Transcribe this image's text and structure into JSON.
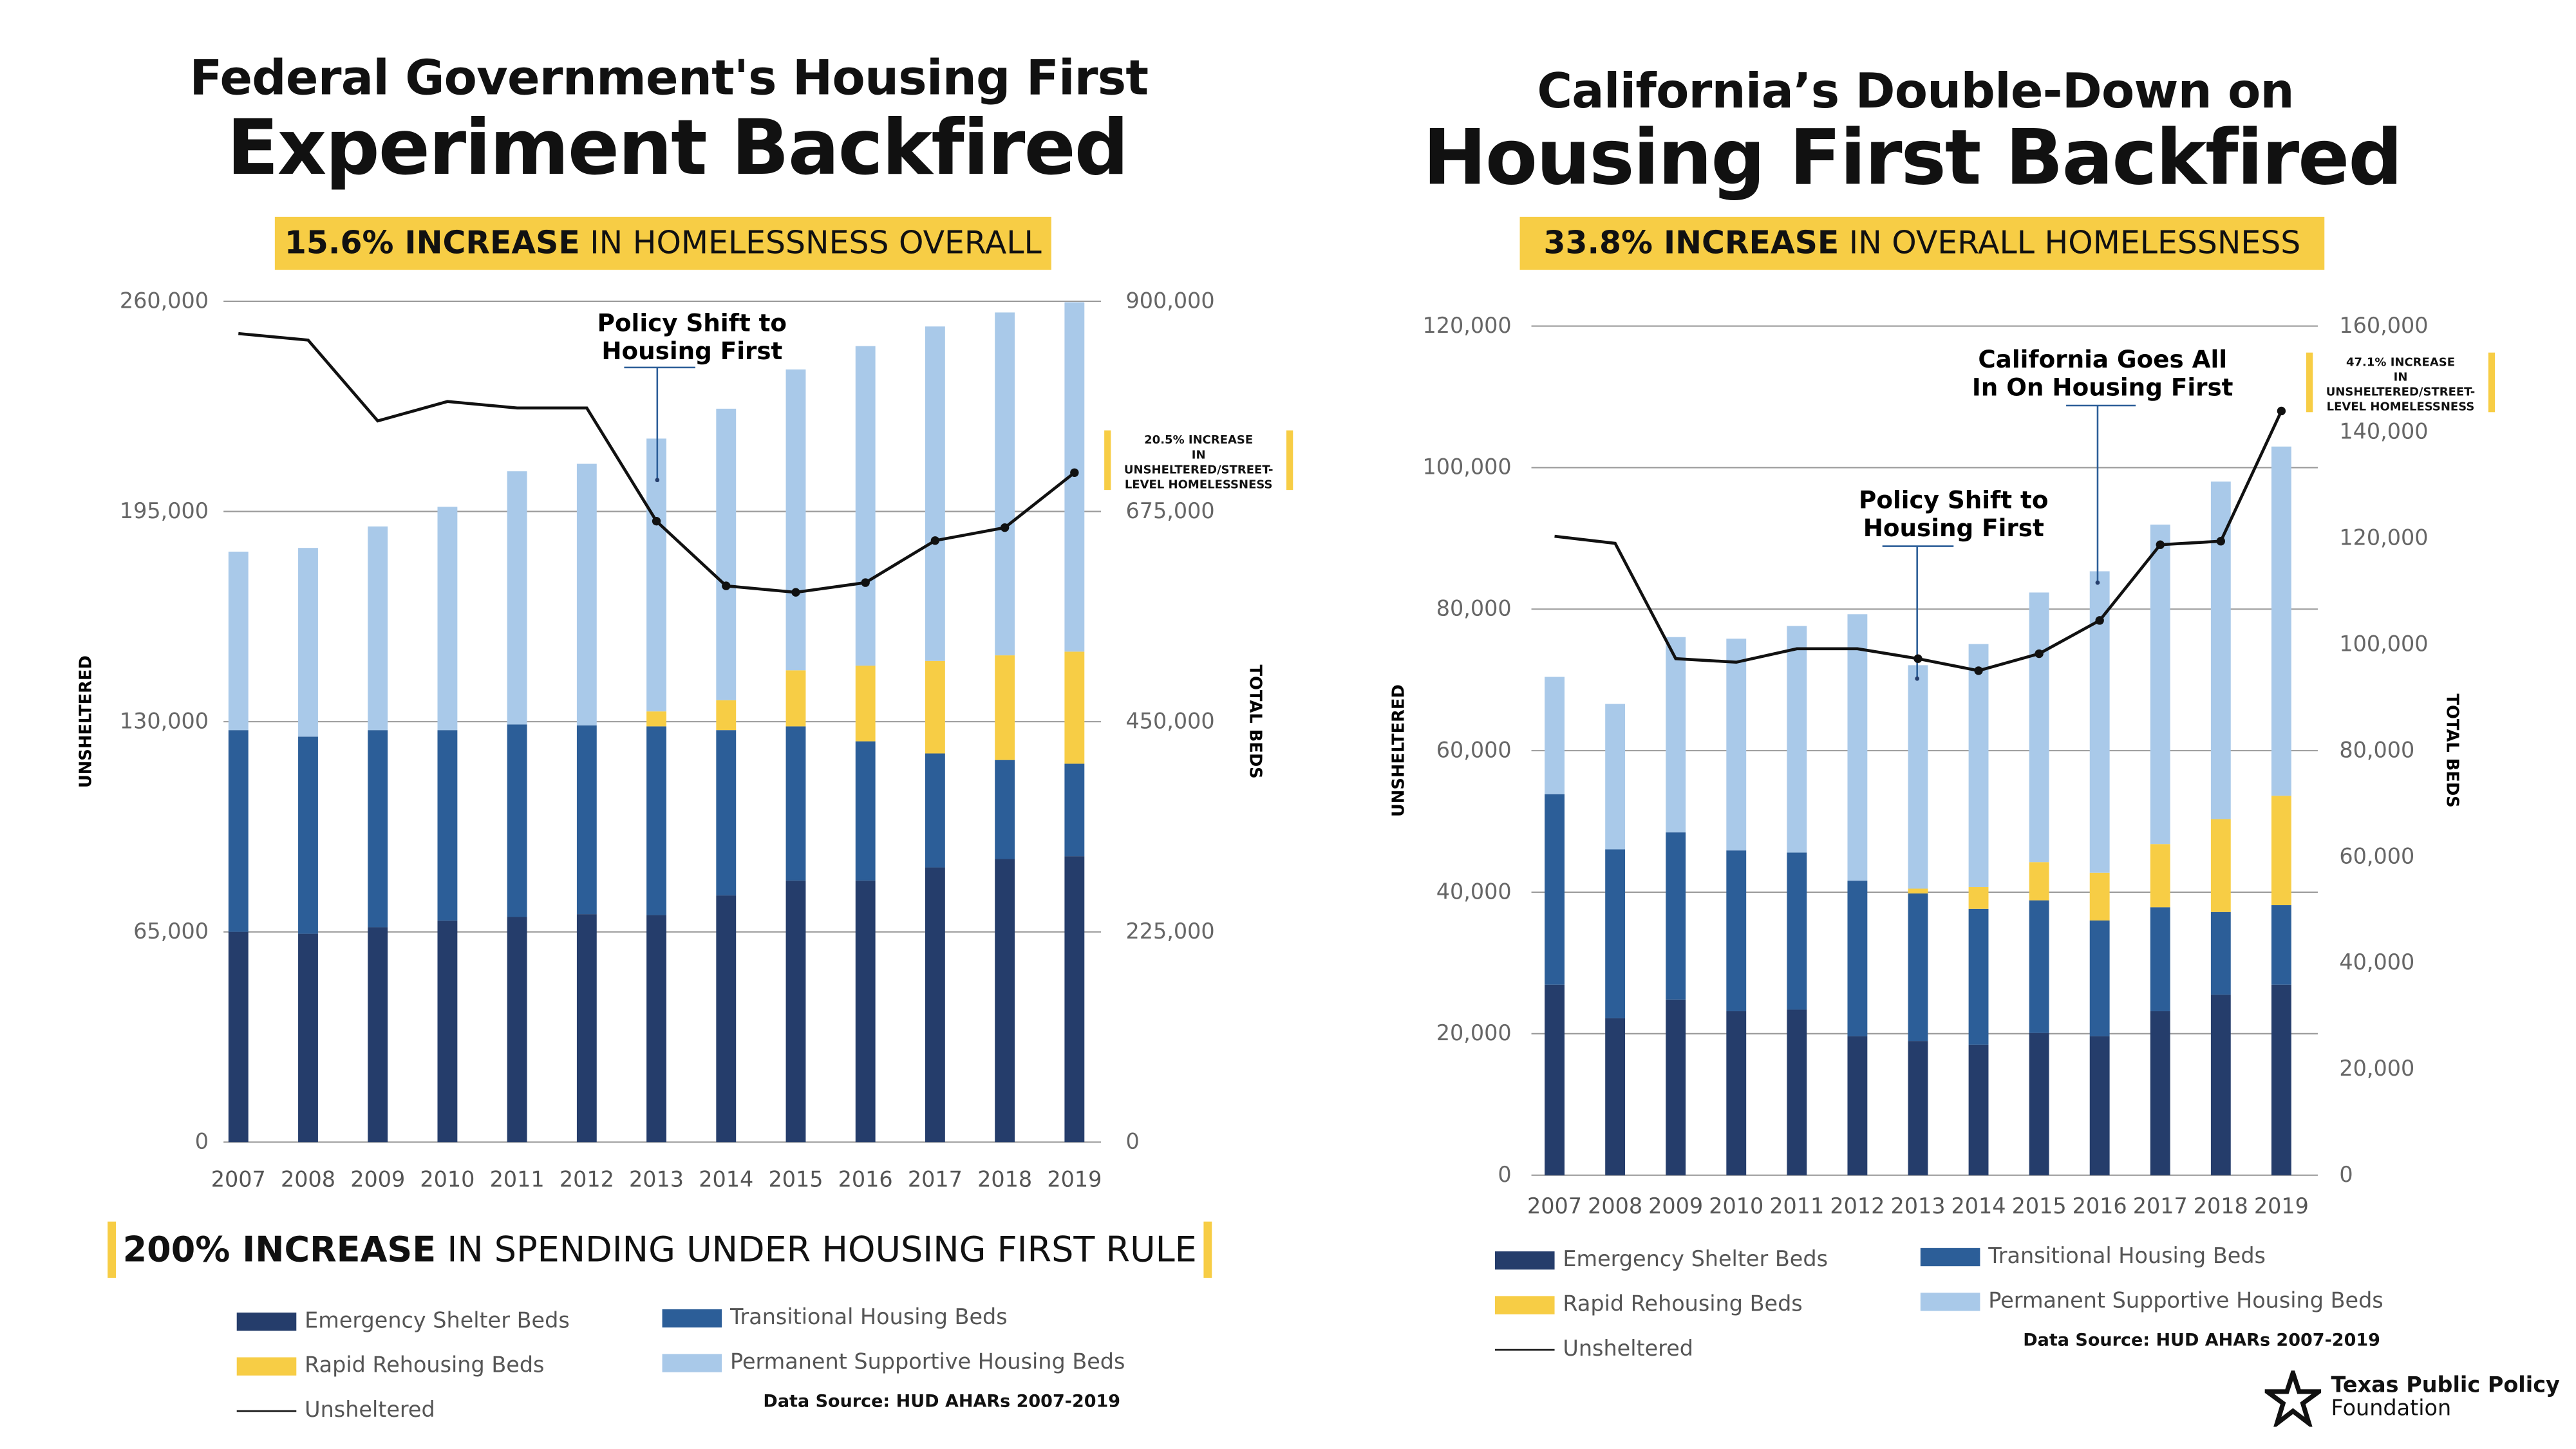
{
  "colors": {
    "emergency": "#253d6b",
    "transitional": "#2c5e98",
    "rapid": "#f7cd45",
    "permanent": "#a9c9e9",
    "unsheltered": "#111111",
    "grid": "#9a9a9a",
    "highlight": "#f7cd45"
  },
  "left": {
    "title_line1": "Federal Government's Housing First",
    "title_line2": "Experiment Backfired",
    "banner_bold": "15.6% INCREASE",
    "banner_rest": " IN HOMELESSNESS OVERALL",
    "callout_bold": "20.5% INCREASE",
    "callout_rest": "IN UNSHELTERED/STREET-LEVEL HOMELESSNESS",
    "spending_bold": "200% INCREASE",
    "spending_rest": " IN SPENDING UNDER HOUSING FIRST RULE",
    "data_source": "Data Source: HUD AHARs 2007-2019"
  },
  "right": {
    "title_line1": "California’s Double-Down on",
    "title_line2": "Housing First Backfired",
    "banner_bold": "33.8% INCREASE",
    "banner_rest": " IN OVERALL HOMELESSNESS",
    "callout_bold": "47.1% INCREASE",
    "callout_rest": "IN UNSHELTERED/STREET-LEVEL HOMELESSNESS",
    "data_source": "Data Source: HUD AHARs 2007-2019"
  },
  "legend": {
    "emergency": "Emergency Shelter Beds",
    "transitional": "Transitional Housing Beds",
    "rapid": "Rapid Rehousing Beds",
    "permanent": "Permanent Supportive Housing Beds",
    "unsheltered": "Unsheltered"
  },
  "logo": {
    "line1": "Texas Public Policy",
    "line2": "Foundation",
    "icon": "star-icon"
  },
  "chart_data": [
    {
      "type": "bar",
      "stacked": true,
      "title": "Federal Government's Housing First Experiment Backfired",
      "categories": [
        "2007",
        "2008",
        "2009",
        "2010",
        "2011",
        "2012",
        "2013",
        "2014",
        "2015",
        "2016",
        "2017",
        "2018",
        "2019"
      ],
      "ylabel": "UNSHELTERED",
      "ylim": [
        0,
        260000
      ],
      "yticks": [
        "0",
        "65,000",
        "130,000",
        "195,000",
        "260,000"
      ],
      "y2label": "TOTAL BEDS",
      "y2lim": [
        0,
        900000
      ],
      "y2ticks": [
        "0",
        "225,000",
        "450,000",
        "675,000",
        "900,000"
      ],
      "grid": true,
      "series": [
        {
          "name": "Emergency Shelter Beds",
          "axis": "right",
          "values": [
            225000,
            223000,
            230000,
            237000,
            241000,
            244000,
            243000,
            264000,
            280000,
            280000,
            294000,
            303000,
            306000
          ]
        },
        {
          "name": "Transitional Housing Beds",
          "axis": "right",
          "values": [
            216000,
            211000,
            211000,
            204000,
            206000,
            202000,
            202000,
            177000,
            165000,
            149000,
            122000,
            106000,
            99000
          ]
        },
        {
          "name": "Rapid Rehousing Beds",
          "axis": "right",
          "values": [
            0,
            0,
            0,
            0,
            0,
            0,
            16000,
            32000,
            60000,
            81000,
            99000,
            112000,
            120000
          ]
        },
        {
          "name": "Permanent Supportive Housing Beds",
          "axis": "right",
          "values": [
            191000,
            202000,
            218000,
            239000,
            271000,
            280000,
            292000,
            312000,
            322000,
            342000,
            358000,
            367000,
            374000
          ]
        },
        {
          "name": "Unsheltered",
          "type": "line",
          "axis": "left",
          "values": [
            250000,
            248000,
            223000,
            229000,
            227000,
            227000,
            192000,
            172000,
            170000,
            173000,
            186000,
            190000,
            207000
          ]
        }
      ],
      "annotations": [
        {
          "label_line1": "Policy Shift to",
          "label_line2": "Housing First",
          "year": "2013"
        }
      ]
    },
    {
      "type": "bar",
      "stacked": true,
      "title": "California’s Double-Down on Housing First Backfired",
      "categories": [
        "2007",
        "2008",
        "2009",
        "2010",
        "2011",
        "2012",
        "2013",
        "2014",
        "2015",
        "2016",
        "2017",
        "2018",
        "2019"
      ],
      "ylabel": "UNSHELTERED",
      "ylim": [
        0,
        120000
      ],
      "yticks": [
        "0",
        "20,000",
        "40,000",
        "60,000",
        "80,000",
        "100,000",
        "120,000"
      ],
      "y2label": "TOTAL BEDS",
      "y2lim": [
        0,
        160000
      ],
      "y2ticks": [
        "0",
        "20,000",
        "40,000",
        "60,000",
        "80,000",
        "100,000",
        "120,000",
        "140,000",
        "160,000"
      ],
      "grid": true,
      "series": [
        {
          "name": "Emergency Shelter Beds",
          "axis": "right",
          "values": [
            35900,
            29600,
            33100,
            30900,
            31200,
            26200,
            25300,
            24600,
            26800,
            26200,
            30900,
            34000,
            35900
          ]
        },
        {
          "name": "Transitional Housing Beds",
          "axis": "right",
          "values": [
            35900,
            31800,
            31500,
            30300,
            29600,
            29300,
            27800,
            25600,
            25000,
            21800,
            19600,
            15600,
            15000
          ]
        },
        {
          "name": "Rapid Rehousing Beds",
          "axis": "right",
          "values": [
            0,
            0,
            0,
            0,
            0,
            0,
            900,
            4100,
            7200,
            9000,
            11900,
            17500,
            20600
          ]
        },
        {
          "name": "Permanent Supportive Housing Beds",
          "axis": "right",
          "values": [
            22100,
            27400,
            36800,
            39900,
            42700,
            50200,
            42100,
            45800,
            50800,
            56800,
            60200,
            63600,
            65800
          ]
        },
        {
          "name": "Unsheltered",
          "type": "line",
          "axis": "left",
          "values": [
            90300,
            89300,
            73000,
            72500,
            74400,
            74400,
            73000,
            71300,
            73700,
            78400,
            89100,
            89600,
            108000
          ]
        }
      ],
      "annotations": [
        {
          "label_line1": "Policy Shift to",
          "label_line2": "Housing First",
          "year": "2013"
        },
        {
          "label_line1": "California Goes All",
          "label_line2": "In On Housing First",
          "year": "2016"
        }
      ]
    }
  ]
}
